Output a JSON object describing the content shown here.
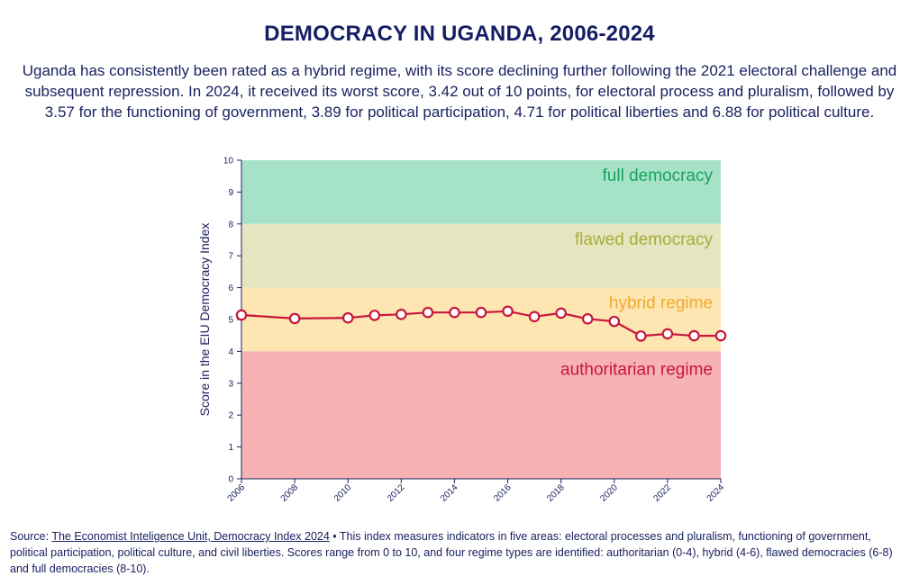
{
  "chart_data": {
    "type": "line",
    "title": "DEMOCRACY IN UGANDA, 2006-2024",
    "subtitle": "Uganda has consistently been rated as a hybrid regime, with its score declining further following the 2021 electoral challenge and subsequent repression. In 2024, it received its worst score, 3.42 out of 10 points, for electoral process and pluralism, followed by 3.57 for the functioning of government, 3.89 for political participation, 4.71 for political liberties and 6.88 for political culture.",
    "ylabel": "Score in the EIU Democracy Index",
    "xlabel": "",
    "ylim": [
      0,
      10
    ],
    "xlim": [
      2006,
      2024
    ],
    "yticks": [
      "0",
      "1",
      "2",
      "3",
      "4",
      "5",
      "6",
      "7",
      "8",
      "9",
      "10"
    ],
    "xticks": [
      "2006",
      "2008",
      "2010",
      "2012",
      "2014",
      "2016",
      "2018",
      "2020",
      "2022",
      "2024"
    ],
    "series": [
      {
        "name": "Uganda",
        "x": [
          2006,
          2008,
          2010,
          2011,
          2012,
          2013,
          2014,
          2015,
          2016,
          2017,
          2018,
          2019,
          2020,
          2021,
          2022,
          2023,
          2024
        ],
        "values": [
          5.14,
          5.03,
          5.05,
          5.13,
          5.16,
          5.22,
          5.22,
          5.22,
          5.26,
          5.09,
          5.2,
          5.02,
          4.94,
          4.48,
          4.55,
          4.49,
          4.49
        ]
      }
    ],
    "regions": [
      {
        "label": "full democracy",
        "from": 8,
        "to": 10,
        "fill": "#a6e2c8",
        "text_color": "#18a35e"
      },
      {
        "label": "flawed democracy",
        "from": 6,
        "to": 8,
        "fill": "#e5e6c0",
        "text_color": "#a8ac3c"
      },
      {
        "label": "hybrid regime",
        "from": 4,
        "to": 6,
        "fill": "#fde6b2",
        "text_color": "#f2a92c"
      },
      {
        "label": "authoritarian regime",
        "from": 0,
        "to": 4,
        "fill": "#f6b2b5",
        "text_color": "#c8163c"
      }
    ],
    "line_color": "#c8163c"
  },
  "footer": {
    "source_prefix": "Source: ",
    "source_link": "The Economist Inteligence Unit, Democracy Index 2024",
    "note": " • This index measures indicators in five areas: electoral processes and pluralism, functioning of government, political participation, political culture, and civil liberties. Scores range from 0 to 10, and four regime types are identified: authoritarian (0-4), hybrid (4-6), flawed democracies (6-8) and full democracies (8-10)."
  }
}
